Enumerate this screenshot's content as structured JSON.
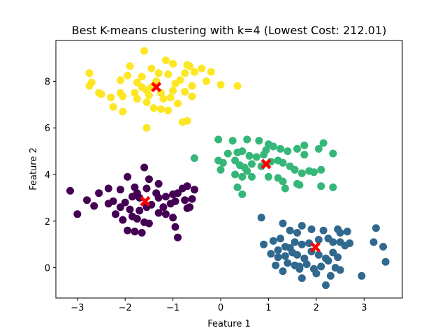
{
  "chart_data": {
    "type": "scatter",
    "title": "Best K-means clustering with k=4 (Lowest Cost: 212.01)",
    "xlabel": "Feature 1",
    "ylabel": "Feature 2",
    "xlim": [
      -3.45,
      3.8
    ],
    "ylim": [
      -1.3,
      9.75
    ],
    "xticks": [
      -3,
      -2,
      -1,
      0,
      1,
      2,
      3
    ],
    "yticks": [
      0,
      2,
      4,
      6,
      8
    ],
    "grid": false,
    "legend": "none",
    "series": [
      {
        "color": "#fde725",
        "points": [
          [
            -1.6,
            9.3
          ],
          [
            -1.15,
            8.9
          ],
          [
            -1.0,
            8.75
          ],
          [
            -0.7,
            8.7
          ],
          [
            -0.65,
            8.65
          ],
          [
            -0.4,
            8.55
          ],
          [
            -0.2,
            8.4
          ],
          [
            -1.9,
            8.65
          ],
          [
            -1.45,
            8.55
          ],
          [
            -1.3,
            8.35
          ],
          [
            -1.65,
            8.2
          ],
          [
            -1.95,
            8.25
          ],
          [
            -2.1,
            8.05
          ],
          [
            -2.75,
            8.35
          ],
          [
            -2.7,
            7.95
          ],
          [
            -2.75,
            7.8
          ],
          [
            -2.55,
            7.5
          ],
          [
            -2.5,
            7.45
          ],
          [
            -2.3,
            7.3
          ],
          [
            -2.1,
            7.5
          ],
          [
            -2.05,
            7.35
          ],
          [
            -1.8,
            7.5
          ],
          [
            -1.75,
            7.25
          ],
          [
            -1.55,
            7.6
          ],
          [
            -1.5,
            7.4
          ],
          [
            -1.25,
            7.5
          ],
          [
            -1.2,
            7.25
          ],
          [
            -1.0,
            7.6
          ],
          [
            -1.05,
            7.3
          ],
          [
            -0.9,
            7.05
          ],
          [
            -0.75,
            7.55
          ],
          [
            -0.6,
            7.35
          ],
          [
            -0.85,
            8.05
          ],
          [
            -1.1,
            8.3
          ],
          [
            -1.35,
            8.0
          ],
          [
            -0.95,
            7.9
          ],
          [
            -0.6,
            7.8
          ],
          [
            -0.55,
            8.4
          ],
          [
            -0.75,
            8.35
          ],
          [
            -0.3,
            8.0
          ],
          [
            0.0,
            7.85
          ],
          [
            0.35,
            7.8
          ],
          [
            -1.55,
            7.1
          ],
          [
            -1.4,
            6.85
          ],
          [
            -1.25,
            6.8
          ],
          [
            -1.1,
            6.75
          ],
          [
            -2.05,
            6.7
          ],
          [
            -2.25,
            6.9
          ],
          [
            -1.55,
            6.0
          ],
          [
            -0.8,
            6.25
          ],
          [
            -0.7,
            6.3
          ],
          [
            -1.65,
            7.75
          ],
          [
            -1.45,
            7.75
          ],
          [
            -1.75,
            7.95
          ]
        ]
      },
      {
        "color": "#35b779",
        "points": [
          [
            -0.55,
            4.7
          ],
          [
            -0.05,
            5.5
          ],
          [
            0.25,
            5.45
          ],
          [
            0.55,
            5.5
          ],
          [
            0.8,
            5.45
          ],
          [
            1.0,
            5.3
          ],
          [
            1.1,
            5.2
          ],
          [
            0.95,
            5.05
          ],
          [
            1.25,
            5.1
          ],
          [
            1.4,
            5.0
          ],
          [
            1.6,
            5.1
          ],
          [
            1.75,
            4.85
          ],
          [
            2.15,
            5.35
          ],
          [
            1.75,
            5.25
          ],
          [
            2.05,
            5.1
          ],
          [
            2.35,
            4.9
          ],
          [
            0.15,
            4.9
          ],
          [
            0.35,
            4.95
          ],
          [
            0.45,
            5.0
          ],
          [
            0.6,
            4.8
          ],
          [
            0.75,
            4.75
          ],
          [
            0.9,
            4.85
          ],
          [
            -0.05,
            4.6
          ],
          [
            0.05,
            4.5
          ],
          [
            0.3,
            4.6
          ],
          [
            0.4,
            4.4
          ],
          [
            0.5,
            4.3
          ],
          [
            0.55,
            4.15
          ],
          [
            0.65,
            4.45
          ],
          [
            0.85,
            4.35
          ],
          [
            1.05,
            4.55
          ],
          [
            1.2,
            4.6
          ],
          [
            1.3,
            4.5
          ],
          [
            1.45,
            4.35
          ],
          [
            1.55,
            4.2
          ],
          [
            1.7,
            4.05
          ],
          [
            1.85,
            4.15
          ],
          [
            1.95,
            4.1
          ],
          [
            2.1,
            4.2
          ],
          [
            0.0,
            4.2
          ],
          [
            0.3,
            4.0
          ],
          [
            0.45,
            3.9
          ],
          [
            0.65,
            3.9
          ],
          [
            1.0,
            3.9
          ],
          [
            1.2,
            3.85
          ],
          [
            1.3,
            3.7
          ],
          [
            1.35,
            3.4
          ],
          [
            1.6,
            3.6
          ],
          [
            1.65,
            3.55
          ],
          [
            0.35,
            3.45
          ],
          [
            0.45,
            3.15
          ],
          [
            2.1,
            3.5
          ],
          [
            2.35,
            3.45
          ]
        ]
      },
      {
        "color": "#440154",
        "points": [
          [
            -3.15,
            3.3
          ],
          [
            -3.0,
            2.3
          ],
          [
            -2.8,
            2.9
          ],
          [
            -2.65,
            2.65
          ],
          [
            -2.55,
            3.2
          ],
          [
            -2.35,
            3.4
          ],
          [
            -2.1,
            3.35
          ],
          [
            -1.95,
            3.9
          ],
          [
            -1.8,
            3.45
          ],
          [
            -1.6,
            4.3
          ],
          [
            -1.5,
            3.8
          ],
          [
            -1.3,
            3.6
          ],
          [
            -1.35,
            3.2
          ],
          [
            -1.15,
            3.05
          ],
          [
            -1.0,
            3.15
          ],
          [
            -0.9,
            3.2
          ],
          [
            -0.8,
            3.4
          ],
          [
            -0.7,
            3.5
          ],
          [
            -0.55,
            3.35
          ],
          [
            -1.85,
            3.05
          ],
          [
            -1.7,
            3.0
          ],
          [
            -1.55,
            3.4
          ],
          [
            -1.45,
            2.7
          ],
          [
            -1.2,
            2.6
          ],
          [
            -1.05,
            2.75
          ],
          [
            -0.95,
            2.85
          ],
          [
            -0.75,
            2.9
          ],
          [
            -0.6,
            2.95
          ],
          [
            -2.1,
            2.6
          ],
          [
            -2.0,
            2.8
          ],
          [
            -2.2,
            2.3
          ],
          [
            -2.05,
            2.05
          ],
          [
            -1.85,
            2.2
          ],
          [
            -1.7,
            2.45
          ],
          [
            -1.9,
            2.5
          ],
          [
            -1.55,
            2.6
          ],
          [
            -1.3,
            2.35
          ],
          [
            -1.15,
            2.3
          ],
          [
            -1.0,
            2.15
          ],
          [
            -0.7,
            2.55
          ],
          [
            -0.65,
            2.6
          ],
          [
            -1.75,
            2.1
          ],
          [
            -1.6,
            1.95
          ],
          [
            -1.5,
            1.9
          ],
          [
            -1.95,
            1.6
          ],
          [
            -1.8,
            1.55
          ],
          [
            -1.65,
            1.5
          ],
          [
            -0.95,
            1.75
          ],
          [
            -0.9,
            1.3
          ],
          [
            -2.25,
            2.85
          ],
          [
            -2.35,
            2.75
          ],
          [
            -1.75,
            3.2
          ],
          [
            -1.3,
            3.0
          ]
        ]
      },
      {
        "color": "#31688e",
        "points": [
          [
            0.85,
            2.15
          ],
          [
            1.25,
            1.25
          ],
          [
            1.3,
            1.9
          ],
          [
            1.45,
            1.6
          ],
          [
            1.6,
            1.5
          ],
          [
            1.7,
            1.8
          ],
          [
            1.9,
            1.65
          ],
          [
            2.15,
            1.6
          ],
          [
            2.45,
            1.65
          ],
          [
            2.5,
            1.5
          ],
          [
            2.65,
            1.55
          ],
          [
            3.25,
            1.7
          ],
          [
            0.9,
            1.0
          ],
          [
            1.1,
            1.15
          ],
          [
            1.2,
            0.75
          ],
          [
            1.35,
            0.9
          ],
          [
            1.45,
            0.85
          ],
          [
            1.55,
            1.1
          ],
          [
            1.7,
            1.0
          ],
          [
            1.85,
            1.05
          ],
          [
            2.05,
            1.2
          ],
          [
            2.25,
            1.25
          ],
          [
            2.35,
            1.1
          ],
          [
            2.5,
            1.1
          ],
          [
            2.6,
            0.95
          ],
          [
            2.7,
            1.05
          ],
          [
            3.2,
            1.1
          ],
          [
            3.4,
            0.9
          ],
          [
            1.05,
            0.6
          ],
          [
            1.2,
            0.45
          ],
          [
            1.35,
            0.5
          ],
          [
            1.5,
            0.65
          ],
          [
            1.6,
            0.55
          ],
          [
            1.75,
            0.4
          ],
          [
            1.9,
            0.7
          ],
          [
            2.05,
            0.55
          ],
          [
            2.2,
            0.4
          ],
          [
            2.35,
            0.65
          ],
          [
            2.45,
            0.45
          ],
          [
            1.15,
            0.1
          ],
          [
            1.4,
            0.2
          ],
          [
            1.55,
            0.1
          ],
          [
            1.65,
            0.05
          ],
          [
            1.8,
            0.15
          ],
          [
            1.95,
            -0.05
          ],
          [
            2.1,
            0.05
          ],
          [
            2.25,
            0.3
          ],
          [
            2.4,
            0.0
          ],
          [
            1.3,
            -0.15
          ],
          [
            1.65,
            -0.05
          ],
          [
            1.7,
            -0.45
          ],
          [
            2.0,
            -0.25
          ],
          [
            2.3,
            -0.35
          ],
          [
            2.2,
            -0.75
          ],
          [
            2.5,
            -0.1
          ],
          [
            2.95,
            -0.35
          ],
          [
            3.45,
            0.25
          ]
        ]
      }
    ],
    "centroids": {
      "color": "#ff0000",
      "marker": "X",
      "points": [
        [
          -1.35,
          7.75
        ],
        [
          0.95,
          4.45
        ],
        [
          -1.58,
          2.85
        ],
        [
          1.98,
          0.88
        ]
      ]
    }
  }
}
